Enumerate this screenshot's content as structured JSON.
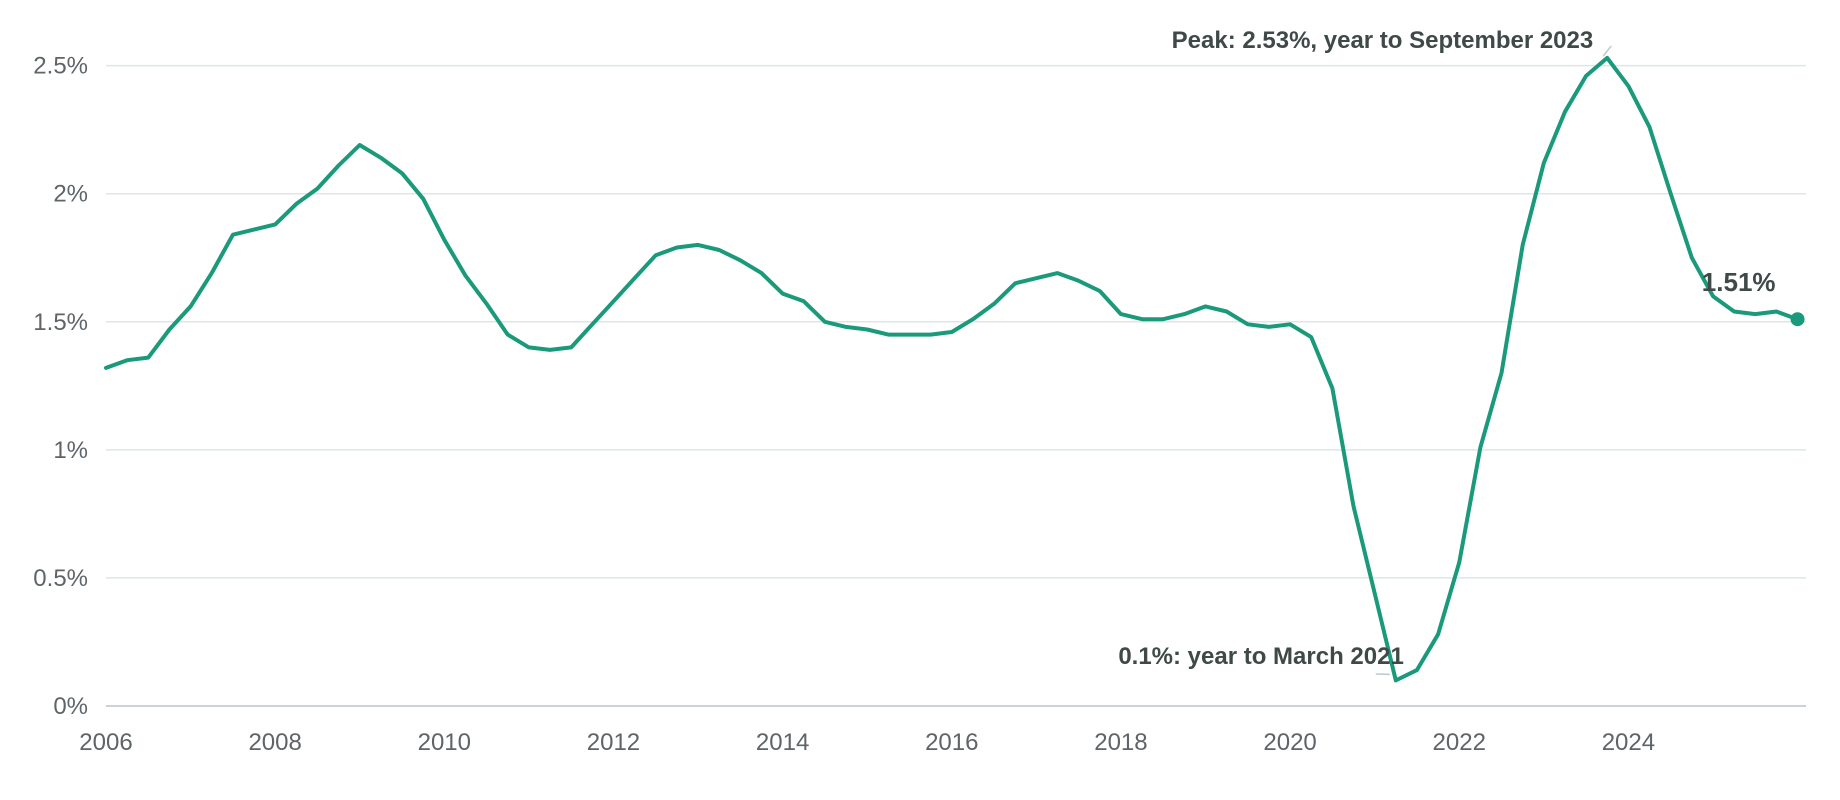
{
  "chart_data": {
    "type": "line",
    "title": "",
    "xlabel": "",
    "ylabel": "",
    "xlim": [
      2006.0,
      2026.1
    ],
    "ylim": [
      0,
      2.6
    ],
    "grid": true,
    "y_ticks": [
      {
        "value": 0,
        "label": "0%"
      },
      {
        "value": 0.5,
        "label": "0.5%"
      },
      {
        "value": 1,
        "label": "1%"
      },
      {
        "value": 1.5,
        "label": "1.5%"
      },
      {
        "value": 2,
        "label": "2%"
      },
      {
        "value": 2.5,
        "label": "2.5%"
      }
    ],
    "x_ticks": [
      {
        "value": 2006,
        "label": "2006"
      },
      {
        "value": 2008,
        "label": "2008"
      },
      {
        "value": 2010,
        "label": "2010"
      },
      {
        "value": 2012,
        "label": "2012"
      },
      {
        "value": 2014,
        "label": "2014"
      },
      {
        "value": 2016,
        "label": "2016"
      },
      {
        "value": 2018,
        "label": "2018"
      },
      {
        "value": 2020,
        "label": "2020"
      },
      {
        "value": 2022,
        "label": "2022"
      },
      {
        "value": 2024,
        "label": "2024"
      }
    ],
    "series": [
      {
        "color": "#1a9a7a",
        "x": [
          2006.0,
          2006.25,
          2006.5,
          2006.75,
          2007.0,
          2007.25,
          2007.5,
          2007.75,
          2008.0,
          2008.25,
          2008.5,
          2008.75,
          2009.0,
          2009.25,
          2009.5,
          2009.75,
          2010.0,
          2010.25,
          2010.5,
          2010.75,
          2011.0,
          2011.25,
          2011.5,
          2011.75,
          2012.0,
          2012.25,
          2012.5,
          2012.75,
          2013.0,
          2013.25,
          2013.5,
          2013.75,
          2014.0,
          2014.25,
          2014.5,
          2014.75,
          2015.0,
          2015.25,
          2015.5,
          2015.75,
          2016.0,
          2016.25,
          2016.5,
          2016.75,
          2017.0,
          2017.25,
          2017.5,
          2017.75,
          2018.0,
          2018.25,
          2018.5,
          2018.75,
          2019.0,
          2019.25,
          2019.5,
          2019.75,
          2020.0,
          2020.25,
          2020.5,
          2020.75,
          2021.0,
          2021.25,
          2021.5,
          2021.75,
          2022.0,
          2022.25,
          2022.5,
          2022.75,
          2023.0,
          2023.25,
          2023.5,
          2023.75,
          2024.0,
          2024.25,
          2024.5,
          2024.75,
          2025.0,
          2025.25,
          2025.5,
          2025.75,
          2026.0
        ],
        "values": [
          1.32,
          1.35,
          1.36,
          1.47,
          1.56,
          1.69,
          1.84,
          1.86,
          1.88,
          1.96,
          2.02,
          2.11,
          2.19,
          2.14,
          2.08,
          1.98,
          1.82,
          1.68,
          1.57,
          1.45,
          1.4,
          1.39,
          1.4,
          1.49,
          1.58,
          1.67,
          1.76,
          1.79,
          1.8,
          1.78,
          1.74,
          1.69,
          1.61,
          1.58,
          1.5,
          1.48,
          1.47,
          1.45,
          1.45,
          1.45,
          1.46,
          1.51,
          1.57,
          1.65,
          1.67,
          1.69,
          1.66,
          1.62,
          1.53,
          1.51,
          1.51,
          1.53,
          1.56,
          1.54,
          1.49,
          1.48,
          1.49,
          1.44,
          1.24,
          0.78,
          0.44,
          0.1,
          0.14,
          0.28,
          0.56,
          1.01,
          1.3,
          1.8,
          2.12,
          2.32,
          2.46,
          2.53,
          2.42,
          2.26,
          2.0,
          1.75,
          1.6,
          1.54,
          1.53,
          1.54,
          1.51
        ]
      }
    ],
    "annotations": [
      {
        "text": "Peak: 2.53%, year to September 2023",
        "x": 2023.75,
        "y": 2.53
      },
      {
        "text": "0.1%: year to March 2021",
        "x": 2021.25,
        "y": 0.1
      }
    ],
    "end_label": {
      "text": "1.51%",
      "x": 2026.0,
      "y": 1.51
    }
  }
}
